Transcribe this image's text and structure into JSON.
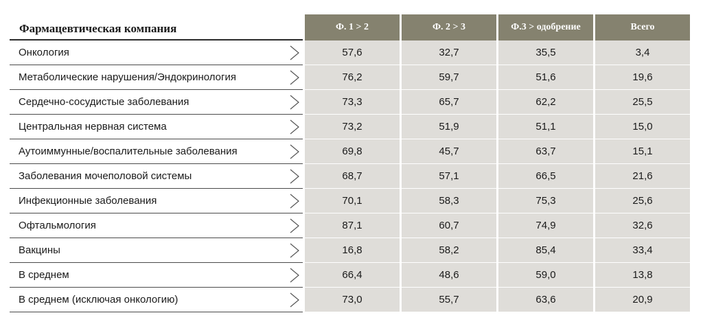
{
  "chart_data": {
    "type": "table",
    "title": "Фармацевтическая компания",
    "columns": [
      "Ф. 1 > 2",
      "Ф. 2 > 3",
      "Ф.3 > одобрение",
      "Всего"
    ],
    "rows": [
      {
        "label": "Онкология",
        "values": [
          "57,6",
          "32,7",
          "35,5",
          "3,4"
        ]
      },
      {
        "label": "Метаболические нарушения/Эндокринология",
        "values": [
          "76,2",
          "59,7",
          "51,6",
          "19,6"
        ]
      },
      {
        "label": "Сердечно-сосудистые заболевания",
        "values": [
          "73,3",
          "65,7",
          "62,2",
          "25,5"
        ]
      },
      {
        "label": "Центральная нервная система",
        "values": [
          "73,2",
          "51,9",
          "51,1",
          "15,0"
        ]
      },
      {
        "label": "Аутоиммунные/воспалительные заболевания",
        "values": [
          "69,8",
          "45,7",
          "63,7",
          "15,1"
        ]
      },
      {
        "label": "Заболевания мочеполовой системы",
        "values": [
          "68,7",
          "57,1",
          "66,5",
          "21,6"
        ]
      },
      {
        "label": "Инфекционные заболевания",
        "values": [
          "70,1",
          "58,3",
          "75,3",
          "25,6"
        ]
      },
      {
        "label": "Офтальмология",
        "values": [
          "87,1",
          "60,7",
          "74,9",
          "32,6"
        ]
      },
      {
        "label": "Вакцины",
        "values": [
          "16,8",
          "58,2",
          "85,4",
          "33,4"
        ]
      },
      {
        "label": "В среднем",
        "values": [
          "66,4",
          "48,6",
          "59,0",
          "13,8"
        ]
      },
      {
        "label": "В среднем (исключая онкологию)",
        "values": [
          "73,0",
          "55,7",
          "63,6",
          "20,9"
        ]
      }
    ]
  },
  "colors": {
    "header_bg": "#85826f",
    "cell_bg": "#dfddd9",
    "text": "#1a1a1a"
  },
  "icons": {
    "row_marker": "chevron-right-icon"
  }
}
